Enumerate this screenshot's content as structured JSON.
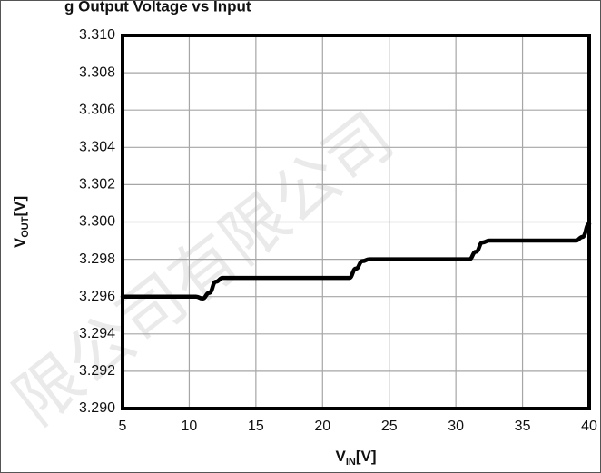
{
  "chart_data": {
    "type": "line",
    "title": "g Output Voltage vs Input",
    "xlabel": {
      "main": "V",
      "sub": "IN",
      "suffix": "[V]"
    },
    "ylabel": {
      "main": "V",
      "sub": "OUT",
      "suffix": "[V]"
    },
    "xlim": [
      5,
      40
    ],
    "ylim": [
      3.29,
      3.31
    ],
    "x_ticks": [
      5,
      10,
      15,
      20,
      25,
      30,
      35,
      40
    ],
    "y_ticks": [
      3.29,
      3.292,
      3.294,
      3.296,
      3.298,
      3.3,
      3.302,
      3.304,
      3.306,
      3.308,
      3.31
    ],
    "x_tick_labels": [
      "5",
      "10",
      "15",
      "20",
      "25",
      "30",
      "35",
      "40"
    ],
    "y_tick_labels": [
      "3.290",
      "3.292",
      "3.294",
      "3.296",
      "3.298",
      "3.300",
      "3.302",
      "3.304",
      "3.306",
      "3.308",
      "3.310"
    ],
    "grid": true,
    "series": [
      {
        "color": "#000000",
        "x": [
          5,
          10.5,
          11,
          11.5,
          12,
          12.5,
          21.5,
          22,
          22.5,
          23,
          23.5,
          30.5,
          31,
          31.5,
          32,
          32.5,
          38.5,
          39,
          39.5,
          40
        ],
        "y": [
          3.296,
          3.296,
          3.2959,
          3.2962,
          3.2968,
          3.297,
          3.297,
          3.297,
          3.2975,
          3.2979,
          3.298,
          3.298,
          3.298,
          3.2984,
          3.2989,
          3.299,
          3.299,
          3.299,
          3.2992,
          3.2999
        ]
      }
    ]
  },
  "watermark": {
    "text": "限公司有限公司",
    "color": "#d9d9d9"
  }
}
